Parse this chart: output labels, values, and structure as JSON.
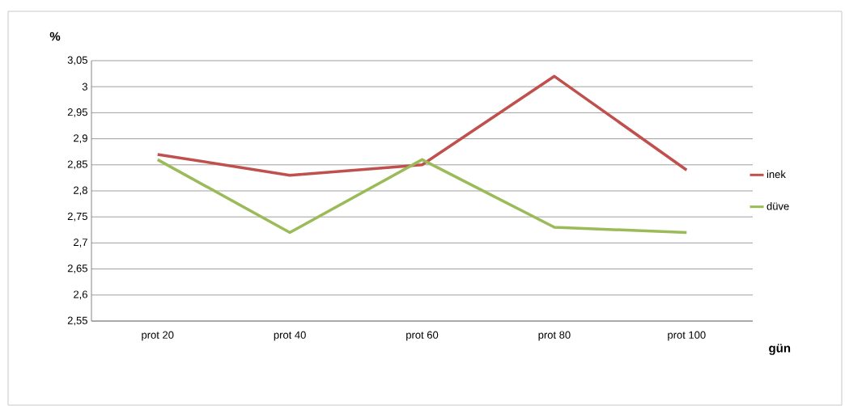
{
  "chart_data": {
    "type": "line",
    "ylabel": "%",
    "xlabel": "gün",
    "categories": [
      "prot 20",
      "prot 40",
      "prot 60",
      "prot 80",
      "prot 100"
    ],
    "series": [
      {
        "name": "inek",
        "color": "#c0504d",
        "values": [
          2.87,
          2.83,
          2.85,
          3.02,
          2.84
        ]
      },
      {
        "name": "düve",
        "color": "#9bbb59",
        "values": [
          2.86,
          2.72,
          2.86,
          2.73,
          2.72
        ]
      }
    ],
    "ylim": [
      2.55,
      3.05
    ],
    "yticks": [
      {
        "value": 2.55,
        "label": "2,55"
      },
      {
        "value": 2.6,
        "label": "2,6"
      },
      {
        "value": 2.65,
        "label": "2,65"
      },
      {
        "value": 2.7,
        "label": "2,7"
      },
      {
        "value": 2.75,
        "label": "2,75"
      },
      {
        "value": 2.8,
        "label": "2,8"
      },
      {
        "value": 2.85,
        "label": "2,85"
      },
      {
        "value": 2.9,
        "label": "2,9"
      },
      {
        "value": 2.95,
        "label": "2,95"
      },
      3,
      {
        "value": 3.05,
        "label": "3,05"
      }
    ],
    "grid": "y",
    "legend": "right",
    "marker": "none",
    "line_style": "solid"
  }
}
